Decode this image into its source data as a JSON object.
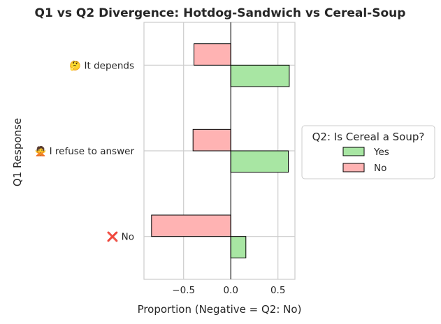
{
  "chart_data": {
    "type": "bar",
    "orientation": "horizontal",
    "title": "Q1 vs Q2 Divergence: Hotdog-Sandwich vs Cereal-Soup",
    "xlabel": "Proportion (Negative = Q2: No)",
    "ylabel": "Q1 Response",
    "categories": [
      "🤔 It depends",
      "🙅 I refuse to answer",
      "❌ No"
    ],
    "series": [
      {
        "name": "Yes",
        "color": "#a8e6a3",
        "values": [
          0.62,
          0.61,
          0.16
        ]
      },
      {
        "name": "No",
        "color": "#ffb3b3",
        "values": [
          -0.39,
          -0.4,
          -0.84
        ]
      }
    ],
    "xlim": [
      -0.92,
      0.68
    ],
    "xticks": [
      -0.5,
      0.0,
      0.5
    ],
    "xtick_labels": [
      "−0.5",
      "0.0",
      "0.5"
    ],
    "grid": true,
    "legend": {
      "title": "Q2: Is Cereal a Soup?",
      "placement": "outside-right"
    }
  }
}
